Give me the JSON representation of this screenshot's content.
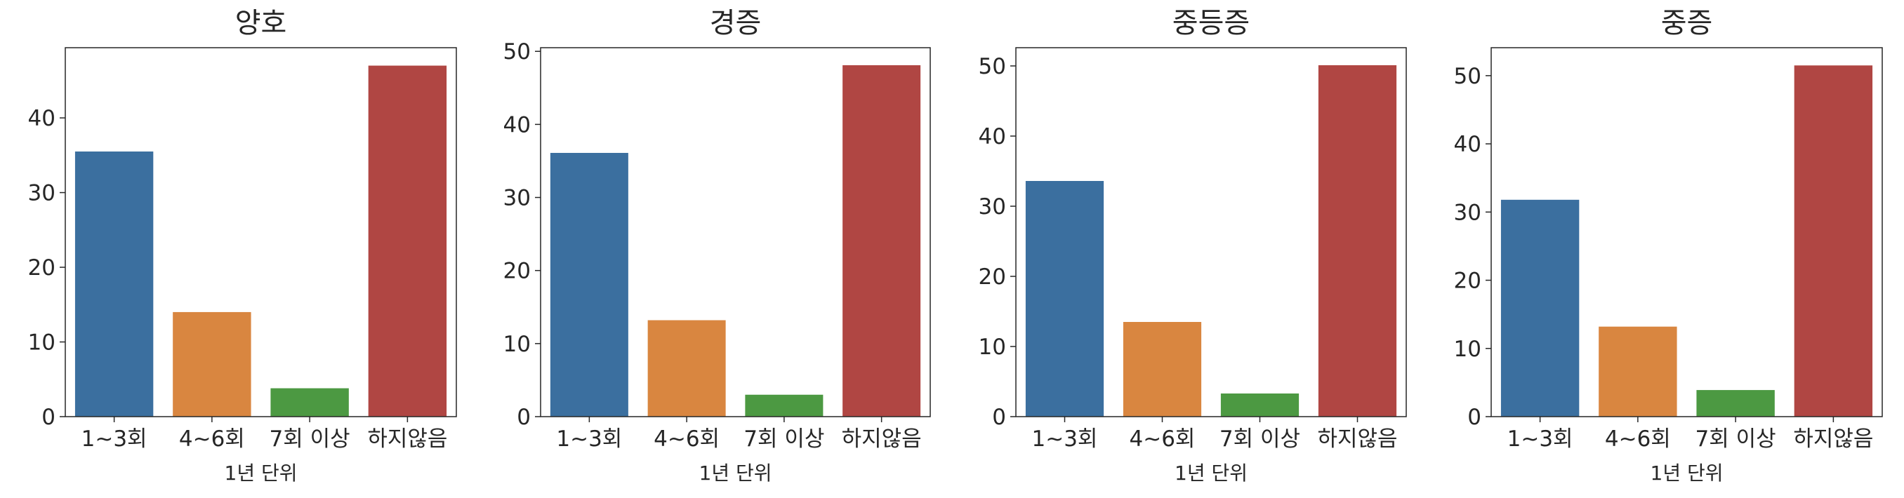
{
  "chart_data": [
    {
      "type": "bar",
      "title": "양호",
      "xlabel": "1년 단위",
      "ylabel": "",
      "categories": [
        "1~3회",
        "4~6회",
        "7회 이상",
        "하지않음"
      ],
      "values": [
        35.5,
        14.0,
        3.8,
        47.0
      ],
      "ylim": [
        0,
        49.4
      ],
      "yticks": [
        0,
        10,
        20,
        30,
        40
      ],
      "colors": [
        "#3b6f9f",
        "#d98640",
        "#4c9942",
        "#b04643"
      ],
      "grid": false
    },
    {
      "type": "bar",
      "title": "경증",
      "xlabel": "1년 단위",
      "ylabel": "",
      "categories": [
        "1~3회",
        "4~6회",
        "7회 이상",
        "하지않음"
      ],
      "values": [
        36.1,
        13.2,
        3.0,
        48.1
      ],
      "ylim": [
        0,
        50.5
      ],
      "yticks": [
        0,
        10,
        20,
        30,
        40,
        50
      ],
      "colors": [
        "#3b6f9f",
        "#d98640",
        "#4c9942",
        "#b04643"
      ],
      "grid": false
    },
    {
      "type": "bar",
      "title": "중등증",
      "xlabel": "1년 단위",
      "ylabel": "",
      "categories": [
        "1~3회",
        "4~6회",
        "7회 이상",
        "하지않음"
      ],
      "values": [
        33.6,
        13.5,
        3.3,
        50.1
      ],
      "ylim": [
        0,
        52.6
      ],
      "yticks": [
        0,
        10,
        20,
        30,
        40,
        50
      ],
      "colors": [
        "#3b6f9f",
        "#d98640",
        "#4c9942",
        "#b04643"
      ],
      "grid": false
    },
    {
      "type": "bar",
      "title": "중증",
      "xlabel": "1년 단위",
      "ylabel": "",
      "categories": [
        "1~3회",
        "4~6회",
        "7회 이상",
        "하지않음"
      ],
      "values": [
        31.8,
        13.2,
        3.9,
        51.5
      ],
      "ylim": [
        0,
        54.1
      ],
      "yticks": [
        0,
        10,
        20,
        30,
        40,
        50
      ],
      "colors": [
        "#3b6f9f",
        "#d98640",
        "#4c9942",
        "#b04643"
      ],
      "grid": false
    }
  ]
}
